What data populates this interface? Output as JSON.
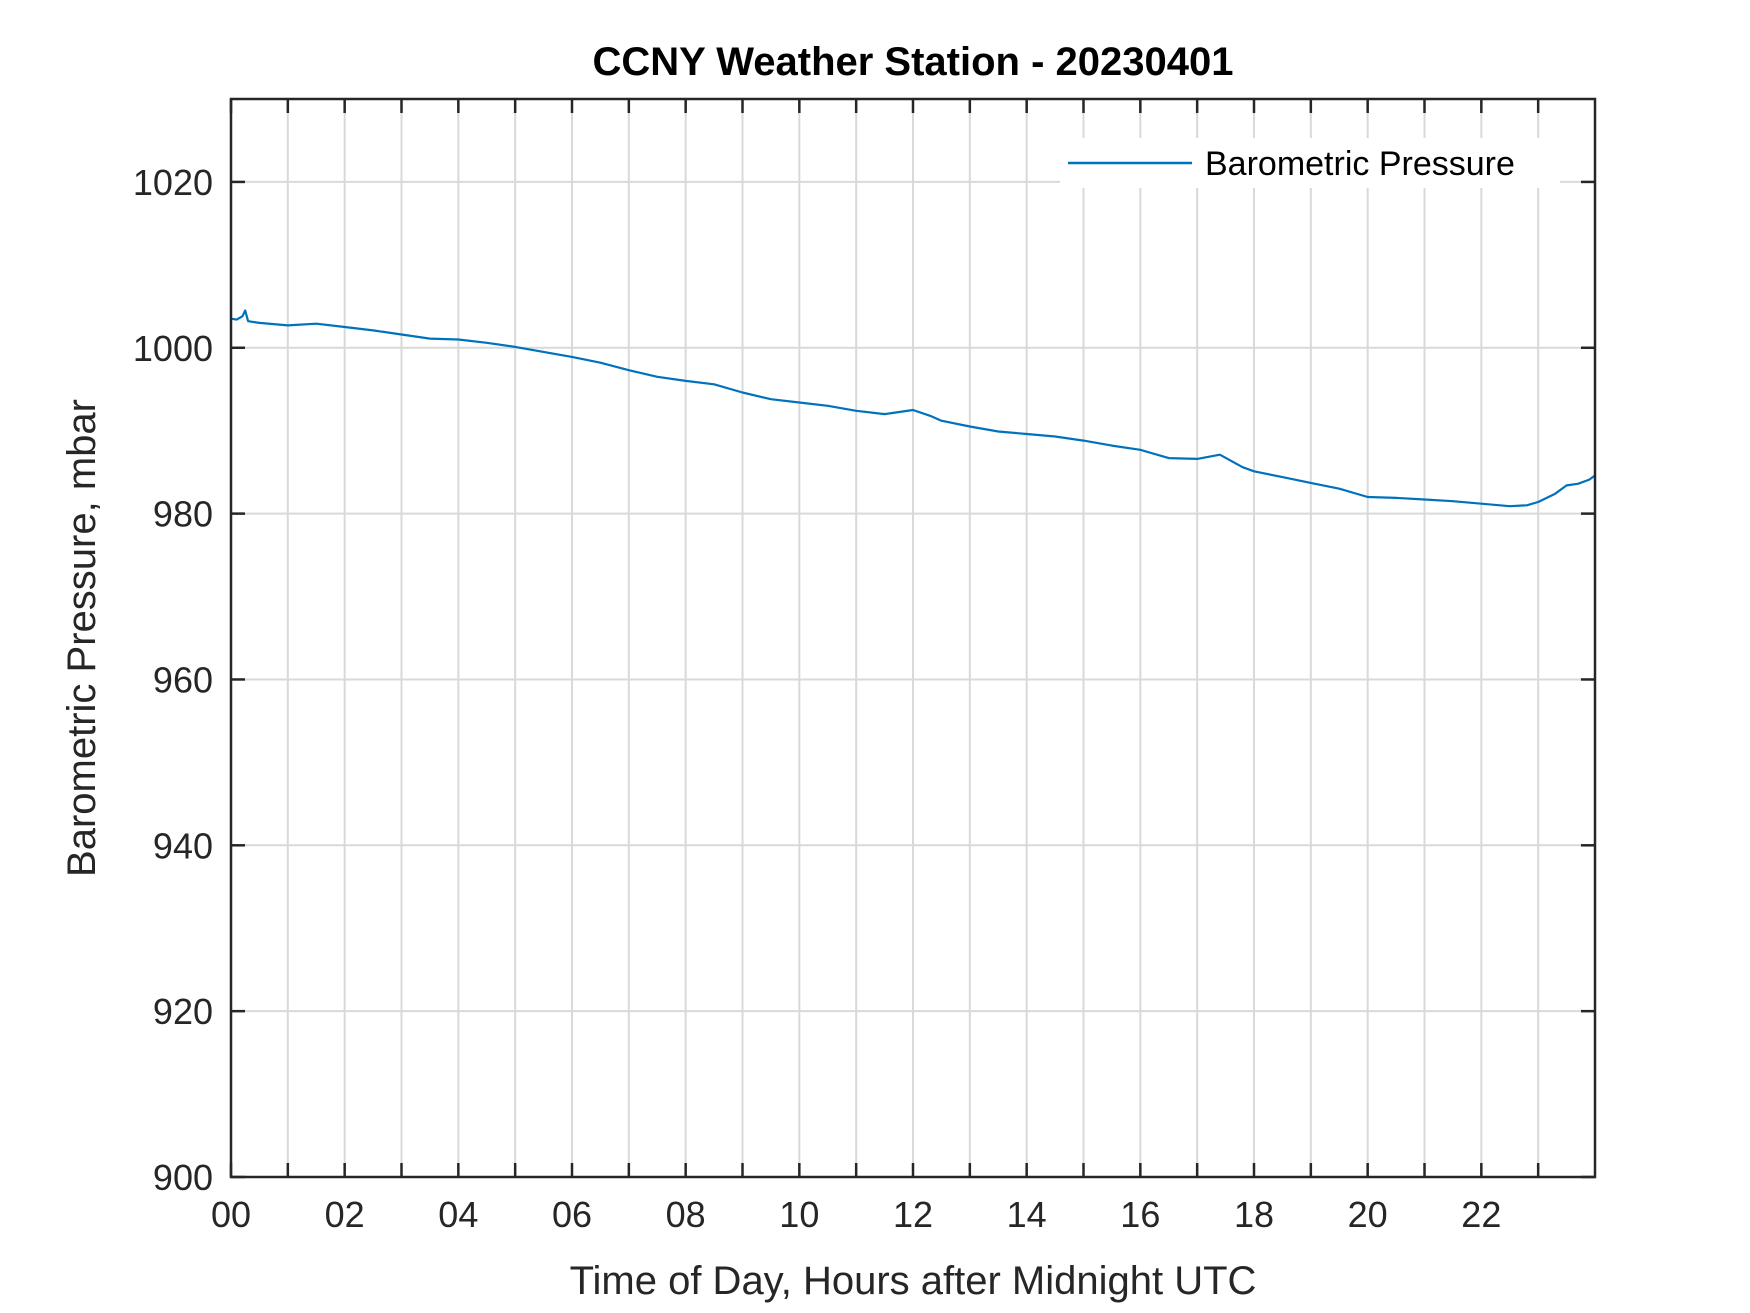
{
  "chart_data": {
    "type": "line",
    "title": "CCNY Weather Station - 20230401",
    "xlabel": "Time of Day, Hours after Midnight UTC",
    "ylabel": "Barometric Pressure, mbar",
    "xlim": [
      0,
      24
    ],
    "ylim": [
      900,
      1030
    ],
    "x_tick_values": [
      0,
      2,
      4,
      6,
      8,
      10,
      12,
      14,
      16,
      18,
      20,
      22
    ],
    "x_tick_labels": [
      "00",
      "02",
      "04",
      "06",
      "08",
      "10",
      "12",
      "14",
      "16",
      "18",
      "20",
      "22"
    ],
    "x_grid_values": [
      0,
      1,
      2,
      3,
      4,
      5,
      6,
      7,
      8,
      9,
      10,
      11,
      12,
      13,
      14,
      15,
      16,
      17,
      18,
      19,
      20,
      21,
      22,
      23
    ],
    "y_tick_values": [
      900,
      920,
      940,
      960,
      980,
      1000,
      1020
    ],
    "y_tick_labels": [
      "900",
      "920",
      "940",
      "960",
      "980",
      "1000",
      "1020"
    ],
    "grid": true,
    "legend_position": "top-right",
    "series": [
      {
        "name": "Barometric Pressure",
        "color": "#0072BD",
        "x": [
          0.0,
          0.1,
          0.2,
          0.25,
          0.3,
          0.5,
          1.0,
          1.5,
          2.0,
          2.5,
          3.0,
          3.5,
          4.0,
          4.5,
          5.0,
          5.5,
          6.0,
          6.5,
          7.0,
          7.5,
          8.0,
          8.5,
          9.0,
          9.5,
          10.0,
          10.5,
          11.0,
          11.5,
          12.0,
          12.3,
          12.5,
          13.0,
          13.5,
          14.0,
          14.5,
          15.0,
          15.5,
          16.0,
          16.5,
          17.0,
          17.4,
          17.8,
          18.0,
          18.5,
          19.0,
          19.5,
          20.0,
          20.5,
          21.0,
          21.5,
          22.0,
          22.5,
          22.8,
          23.0,
          23.3,
          23.5,
          23.7,
          23.9,
          24.0
        ],
        "values": [
          1003.5,
          1003.4,
          1003.8,
          1004.5,
          1003.2,
          1003.0,
          1002.7,
          1002.9,
          1002.5,
          1002.1,
          1001.6,
          1001.1,
          1001.0,
          1000.6,
          1000.1,
          999.5,
          998.9,
          998.2,
          997.3,
          996.5,
          996.0,
          995.6,
          994.6,
          993.8,
          993.4,
          993.0,
          992.4,
          992.0,
          992.5,
          991.8,
          991.2,
          990.5,
          989.9,
          989.6,
          989.3,
          988.8,
          988.2,
          987.7,
          986.7,
          986.6,
          987.1,
          985.6,
          985.1,
          984.4,
          983.7,
          983.0,
          982.0,
          981.9,
          981.7,
          981.5,
          981.2,
          980.9,
          981.0,
          981.4,
          982.4,
          983.4,
          983.6,
          984.1,
          984.6
        ]
      }
    ]
  }
}
